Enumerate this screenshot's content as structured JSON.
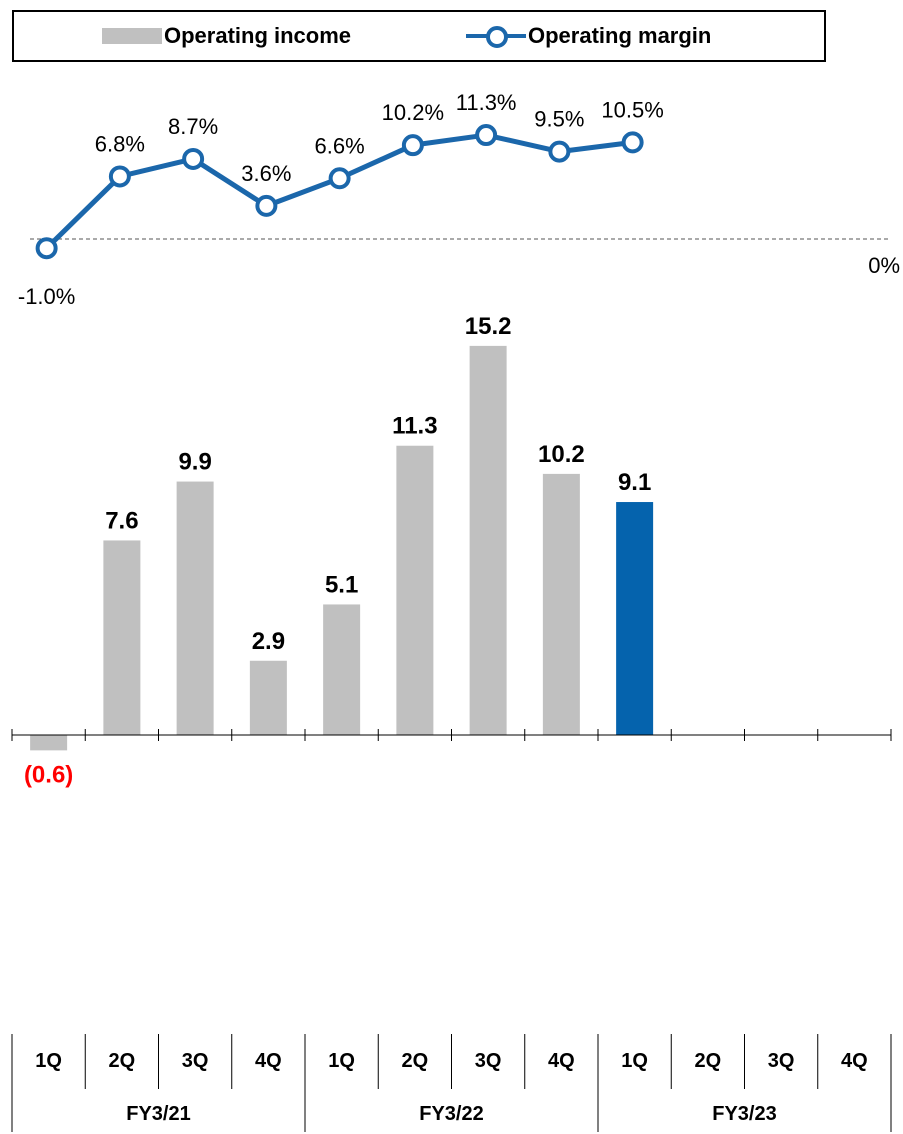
{
  "legend": {
    "bar_label": "Operating income",
    "line_label": "Operating margin"
  },
  "colors": {
    "bar_default": "#c0c0c0",
    "bar_highlight": "#0563ad",
    "line": "#1b67ab",
    "negative_label": "#ff0000"
  },
  "chart_data": [
    {
      "type": "line",
      "name": "Operating margin",
      "categories": [
        "1Q",
        "2Q",
        "3Q",
        "4Q",
        "1Q",
        "2Q",
        "3Q",
        "4Q",
        "1Q"
      ],
      "values": [
        -1.0,
        6.8,
        8.7,
        3.6,
        6.6,
        10.2,
        11.3,
        9.5,
        10.5
      ],
      "labels": [
        "-1.0%",
        "6.8%",
        "8.7%",
        "3.6%",
        "6.6%",
        "10.2%",
        "11.3%",
        "9.5%",
        "10.5%"
      ],
      "reference_line": {
        "value": 0,
        "label": "0%",
        "style": "dashed"
      }
    },
    {
      "type": "bar",
      "name": "Operating income",
      "quarters": [
        "1Q",
        "2Q",
        "3Q",
        "4Q",
        "1Q",
        "2Q",
        "3Q",
        "4Q",
        "1Q",
        "2Q",
        "3Q",
        "4Q"
      ],
      "values": [
        -0.6,
        7.6,
        9.9,
        2.9,
        5.1,
        11.3,
        15.2,
        10.2,
        9.1,
        null,
        null,
        null
      ],
      "labels": [
        "(0.6)",
        "7.6",
        "9.9",
        "2.9",
        "5.1",
        "11.3",
        "15.2",
        "10.2",
        "9.1",
        "",
        "",
        ""
      ],
      "highlight_index": 8,
      "groups": [
        {
          "label": "FY3/21",
          "count": 4
        },
        {
          "label": "FY3/22",
          "count": 4
        },
        {
          "label": "FY3/23",
          "count": 4
        }
      ],
      "grid": false
    }
  ]
}
